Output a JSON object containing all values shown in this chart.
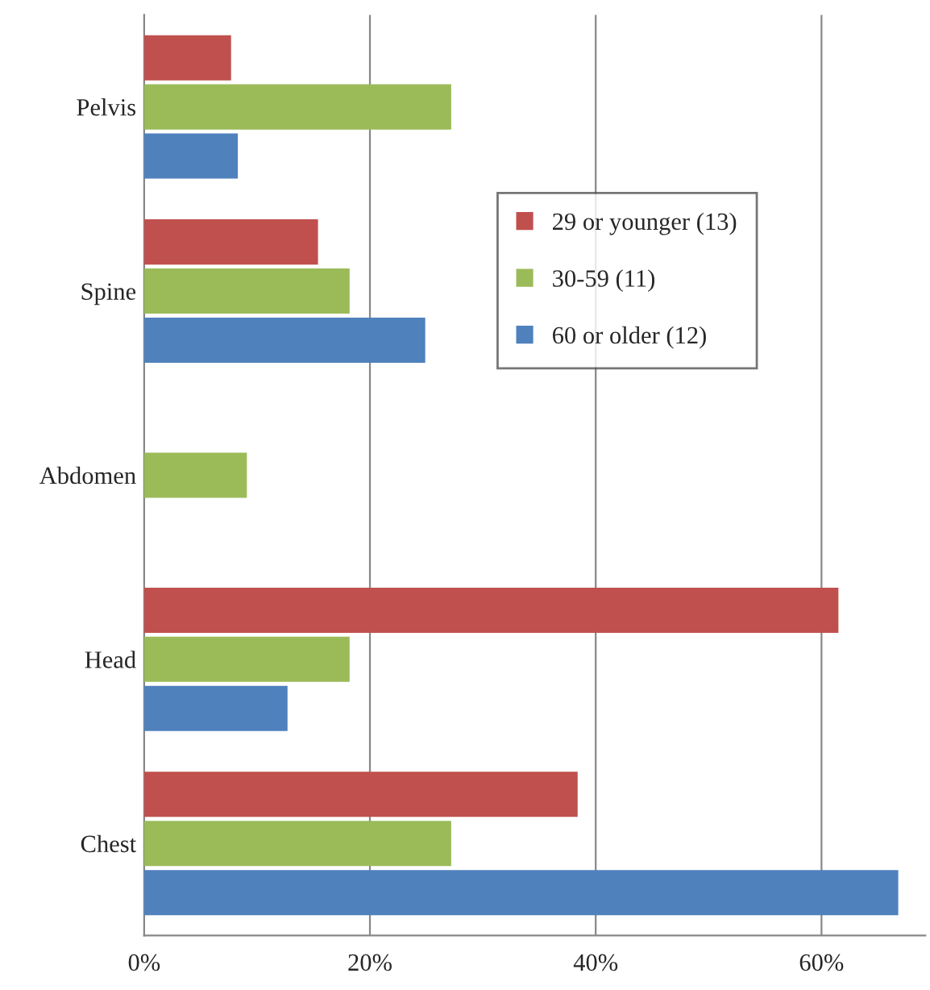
{
  "chart_data": {
    "type": "bar",
    "orientation": "horizontal",
    "categories": [
      "Pelvis",
      "Spine",
      "Abdomen",
      "Head",
      "Chest"
    ],
    "series": [
      {
        "name": "29 or younger (13)",
        "color": "#c0504d",
        "values": [
          7.7,
          15.4,
          0,
          61.5,
          38.4
        ]
      },
      {
        "name": "30-59 (11)",
        "color": "#9bbb59",
        "values": [
          27.2,
          18.2,
          9.1,
          18.2,
          27.2
        ]
      },
      {
        "name": "60 or older (12)",
        "color": "#4f81bd",
        "values": [
          8.3,
          24.9,
          0,
          12.7,
          66.8
        ]
      }
    ],
    "xlim": [
      0,
      69.2
    ],
    "xticks": [
      {
        "value": 0,
        "label": "0%"
      },
      {
        "value": 20,
        "label": "20%"
      },
      {
        "value": 40,
        "label": "40%"
      },
      {
        "value": 60,
        "label": "60%"
      }
    ],
    "grid": "x",
    "legend": "top right"
  }
}
